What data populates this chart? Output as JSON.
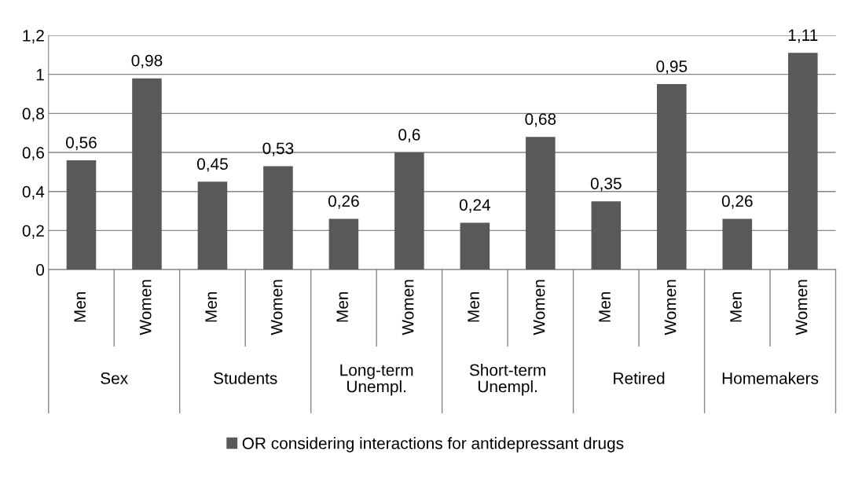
{
  "chart_data": {
    "type": "bar",
    "categories": [
      "Men",
      "Women",
      "Men",
      "Women",
      "Men",
      "Women",
      "Men",
      "Women",
      "Men",
      "Women",
      "Men",
      "Women"
    ],
    "annotations": [
      "Sex",
      "Students",
      "Long-term\nUnempl.",
      "Short-term\nUnempl.",
      "Retired",
      "Homemakers"
    ],
    "series": [
      {
        "name": "OR considering interactions for antidepressant drugs",
        "color": "#595959",
        "values": [
          0.56,
          0.98,
          0.45,
          0.53,
          0.26,
          0.6,
          0.24,
          0.68,
          0.35,
          0.95,
          0.26,
          1.11
        ]
      }
    ],
    "ylim": [
      0,
      1.2
    ],
    "yticks": [
      {
        "value": 0,
        "label": "0"
      },
      {
        "value": 0.2,
        "label": "0,2"
      },
      {
        "value": 0.4,
        "label": "0,4"
      },
      {
        "value": 0.6,
        "label": "0,6"
      },
      {
        "value": 0.8,
        "label": "0,8"
      },
      {
        "value": 1,
        "label": "1"
      },
      {
        "value": 1.2,
        "label": "1,2"
      }
    ],
    "value_labels": [
      "0,56",
      "0,98",
      "0,45",
      "0,53",
      "0,26",
      "0,6",
      "0,24",
      "0,68",
      "0,35",
      "0,95",
      "0,26",
      "1,11"
    ],
    "grid": "y",
    "legend": "bottom"
  }
}
